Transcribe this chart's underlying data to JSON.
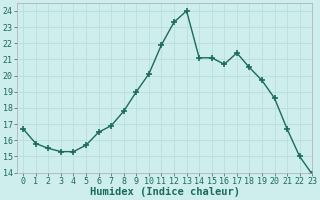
{
  "x": [
    0,
    1,
    2,
    3,
    4,
    5,
    6,
    7,
    8,
    9,
    10,
    11,
    12,
    13,
    14,
    15,
    16,
    17,
    18,
    19,
    20,
    21,
    22,
    23
  ],
  "y": [
    16.7,
    15.8,
    15.5,
    15.3,
    15.3,
    15.7,
    16.5,
    16.9,
    17.8,
    19.0,
    20.1,
    21.9,
    23.3,
    24.0,
    21.1,
    21.1,
    20.7,
    21.4,
    20.5,
    19.7,
    18.6,
    16.7,
    15.0,
    13.9
  ],
  "xlabel": "Humidex (Indice chaleur)",
  "ylim": [
    14,
    24.5
  ],
  "xlim": [
    -0.5,
    23
  ],
  "yticks": [
    14,
    15,
    16,
    17,
    18,
    19,
    20,
    21,
    22,
    23,
    24
  ],
  "xticks": [
    0,
    1,
    2,
    3,
    4,
    5,
    6,
    7,
    8,
    9,
    10,
    11,
    12,
    13,
    14,
    15,
    16,
    17,
    18,
    19,
    20,
    21,
    22,
    23
  ],
  "line_color": "#1a6b5a",
  "marker_color": "#1a6b5a",
  "bg_color": "#ceeeed",
  "grid_color": "#b8dedd",
  "xlabel_fontsize": 7.5,
  "tick_fontsize": 6,
  "line_width": 1.0,
  "marker_size": 4
}
